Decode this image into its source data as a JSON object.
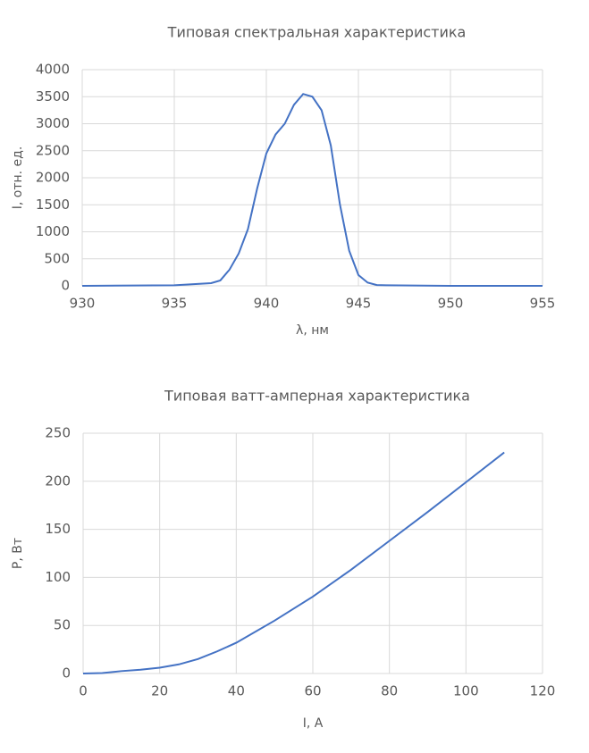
{
  "chart_data": [
    {
      "type": "line",
      "title": "Типовая спектральная характеристика",
      "x_label": "λ, нм",
      "y_label": "I, отн. ед.",
      "xlim": [
        930,
        955
      ],
      "ylim": [
        0,
        4000
      ],
      "xticks": [
        930,
        935,
        940,
        945,
        950,
        955
      ],
      "yticks": [
        0,
        500,
        1000,
        1500,
        2000,
        2500,
        3000,
        3500,
        4000
      ],
      "grid": true,
      "x": [
        930,
        935,
        937,
        937.5,
        938,
        938.5,
        939,
        939.5,
        940,
        940.5,
        941,
        941.5,
        942,
        942.5,
        943,
        943.5,
        944,
        944.5,
        945,
        945.5,
        946,
        946.5,
        950,
        955
      ],
      "series": [
        {
          "name": "I",
          "color": "#4472c4",
          "values": [
            0,
            10,
            50,
            100,
            300,
            600,
            1050,
            1800,
            2450,
            2800,
            3000,
            3350,
            3550,
            3500,
            3250,
            2600,
            1500,
            650,
            200,
            60,
            15,
            10,
            0,
            0
          ]
        }
      ]
    },
    {
      "type": "line",
      "title": "Типовая ватт-амперная характеристика",
      "x_label": "I, A",
      "y_label": "P, Вт",
      "xlim": [
        0,
        120
      ],
      "ylim": [
        0,
        250
      ],
      "xticks": [
        0,
        20,
        40,
        60,
        80,
        100,
        120
      ],
      "yticks": [
        0,
        50,
        100,
        150,
        200,
        250
      ],
      "grid": true,
      "x": [
        0,
        5,
        10,
        15,
        20,
        25,
        30,
        35,
        40,
        50,
        60,
        70,
        80,
        90,
        100,
        110
      ],
      "series": [
        {
          "name": "P",
          "color": "#4472c4",
          "values": [
            0,
            0.5,
            2.5,
            4,
            6,
            9.5,
            15,
            23,
            32,
            55,
            80,
            108,
            138,
            168,
            199,
            230
          ]
        }
      ]
    }
  ]
}
